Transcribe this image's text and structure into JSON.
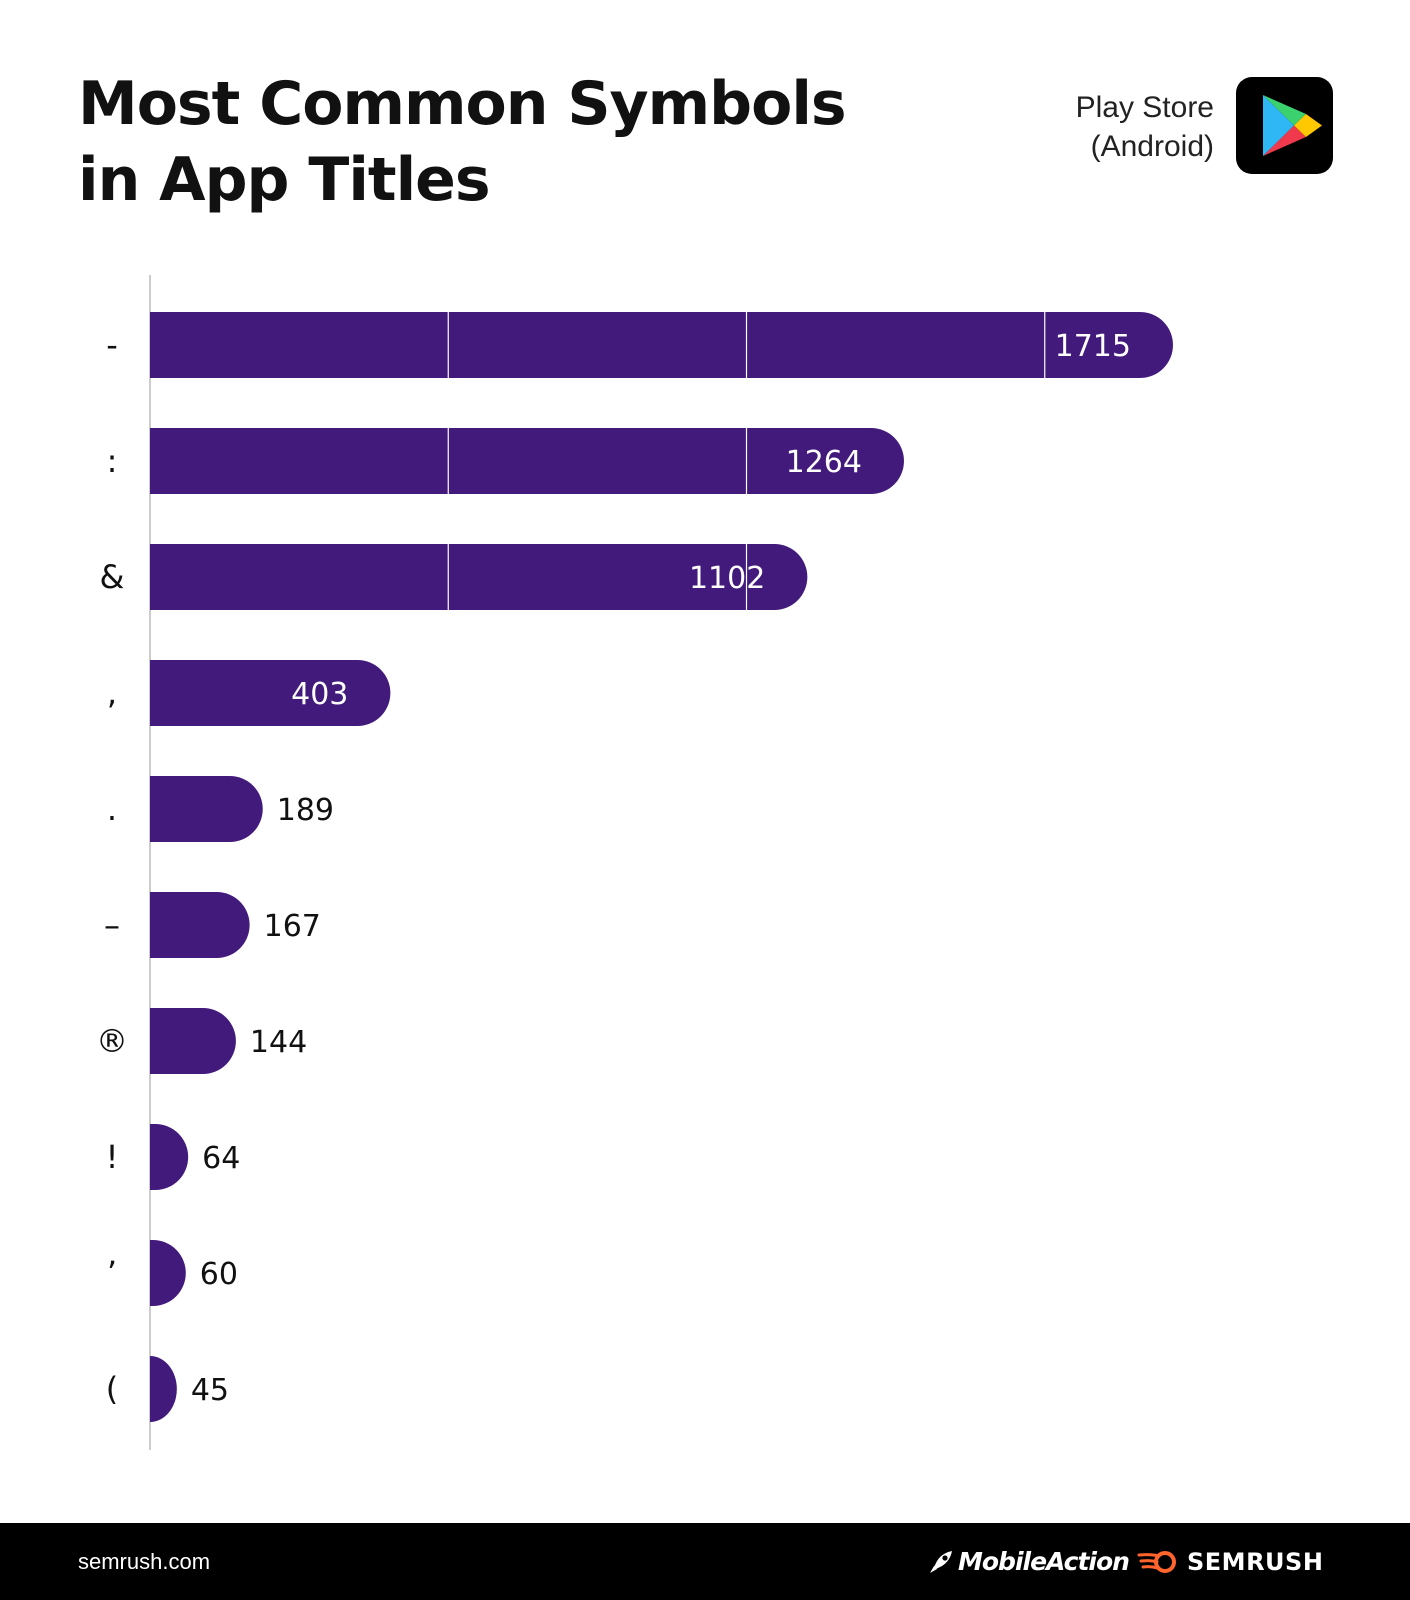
{
  "header": {
    "title_line1": "Most Common Symbols",
    "title_line2": "in App Titles",
    "store_line1": "Play Store",
    "store_line2": "(Android)"
  },
  "colors": {
    "bar": "#421a7c",
    "axis": "#bbbbbb",
    "text": "#111111",
    "footer_bg": "#000000",
    "semrush_orange": "#ff642d"
  },
  "chart_data": {
    "type": "bar",
    "orientation": "horizontal",
    "title": "Most Common Symbols in App Titles",
    "categories": [
      "-",
      ":",
      "&",
      ",",
      ".",
      "–",
      "®",
      "!",
      "’",
      "("
    ],
    "values": [
      1715,
      1264,
      1102,
      403,
      189,
      167,
      144,
      64,
      60,
      45
    ],
    "xlim": [
      0,
      2000
    ],
    "segment_every": 500,
    "xlabel": "",
    "ylabel": "",
    "grid": false,
    "legend": "none"
  },
  "footer": {
    "domain": "semrush.com",
    "brand1": "MobileAction",
    "brand2": "SEMRUSH"
  }
}
